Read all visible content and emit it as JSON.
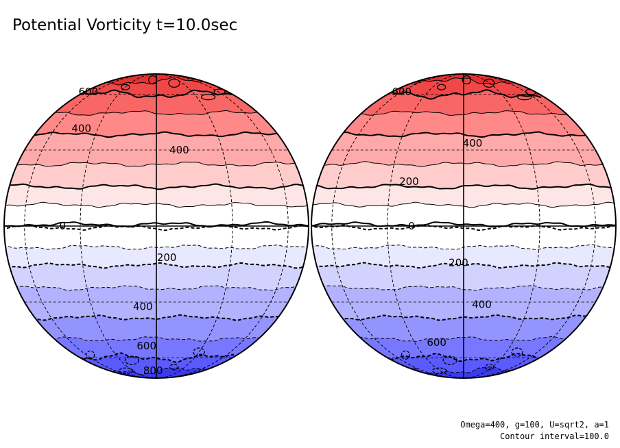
{
  "title": "Potential Vorticity t=10.0sec",
  "params": {
    "line1": "Omega=400, g=100, U=sqrt2, a=1",
    "line2": "Contour interval=100.0"
  },
  "chart_data": {
    "type": "contour",
    "projection": "orthographic (two hemispheres)",
    "variable": "Potential Vorticity",
    "time_label": "t=10.0sec",
    "contour_interval": 100.0,
    "min_level": -800,
    "max_level": 800,
    "colors": {
      "positive": [
        "#ffffff",
        "#ffe6e6",
        "#ffcccc",
        "#ffaaaa",
        "#ff8888",
        "#f96666",
        "#f04848",
        "#e83030"
      ],
      "negative": [
        "#ffffff",
        "#e8e8ff",
        "#d2d2ff",
        "#b2b2ff",
        "#9494ff",
        "#7777ff",
        "#5a5aff",
        "#3a3aee"
      ],
      "line": "#000000"
    },
    "hemispheres": [
      {
        "name": "left",
        "labels": [
          {
            "text": "600",
            "lat": 62,
            "lon": -72
          },
          {
            "text": "400",
            "lat": 40,
            "lon": -40
          },
          {
            "text": "400",
            "lat": 30,
            "lon": 10
          },
          {
            "text": "0",
            "lat": 0,
            "lon": -38
          },
          {
            "text": "200",
            "lat": -12,
            "lon": 4
          },
          {
            "text": "400",
            "lat": -32,
            "lon": -6
          },
          {
            "text": "600",
            "lat": -52,
            "lon": -6
          },
          {
            "text": "800",
            "lat": -72,
            "lon": -4
          }
        ]
      },
      {
        "name": "right",
        "labels": [
          {
            "text": "600",
            "lat": 62,
            "lon": -60
          },
          {
            "text": "400",
            "lat": 33,
            "lon": 4
          },
          {
            "text": "200",
            "lat": 17,
            "lon": -22
          },
          {
            "text": "0",
            "lat": 0,
            "lon": -20
          },
          {
            "text": "200",
            "lat": -14,
            "lon": -2
          },
          {
            "text": "400",
            "lat": -31,
            "lon": 8
          },
          {
            "text": "600",
            "lat": -50,
            "lon": -16
          }
        ]
      }
    ]
  }
}
